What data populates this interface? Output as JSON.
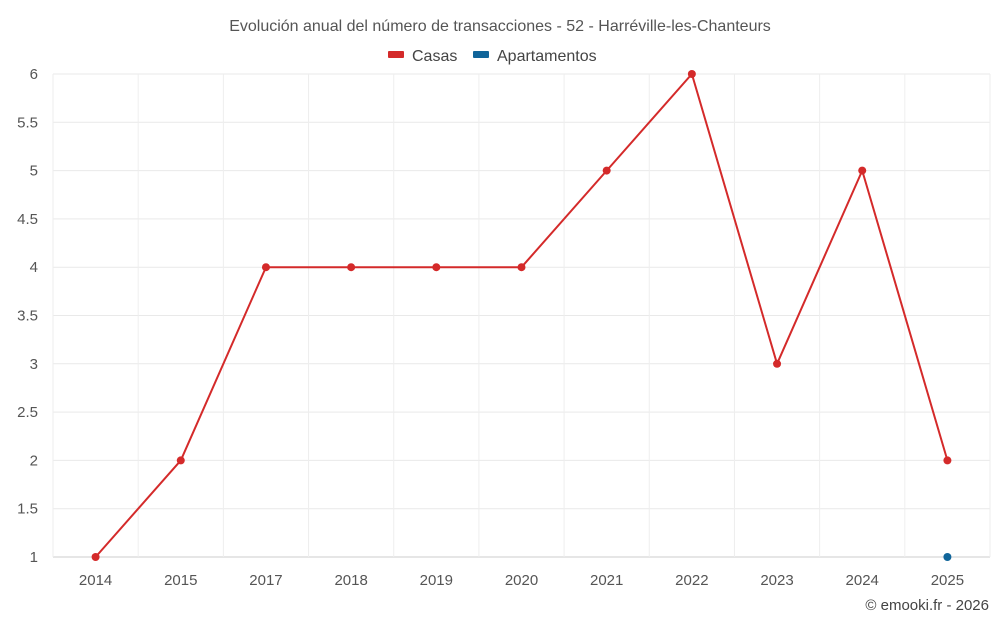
{
  "chart_data": {
    "type": "line",
    "title": "Evolución anual del número de transacciones - 52 - Harréville-les-Chanteurs",
    "categories": [
      "2014",
      "2015",
      "2017",
      "2018",
      "2019",
      "2020",
      "2021",
      "2022",
      "2023",
      "2024",
      "2025"
    ],
    "series": [
      {
        "name": "Casas",
        "color": "#d42a2a",
        "values": [
          1,
          2,
          4,
          4,
          4,
          4,
          5,
          6,
          3,
          5,
          2
        ]
      },
      {
        "name": "Apartamentos",
        "color": "#10659a",
        "values": [
          null,
          null,
          null,
          null,
          null,
          null,
          null,
          null,
          null,
          null,
          1
        ]
      }
    ],
    "y_ticks": [
      "1",
      "1.5",
      "2",
      "2.5",
      "3",
      "3.5",
      "4",
      "4.5",
      "5",
      "5.5",
      "6"
    ],
    "ylim": [
      1,
      6
    ],
    "grid": true,
    "legend_position": "top-center"
  },
  "credit": "© emooki.fr - 2026"
}
